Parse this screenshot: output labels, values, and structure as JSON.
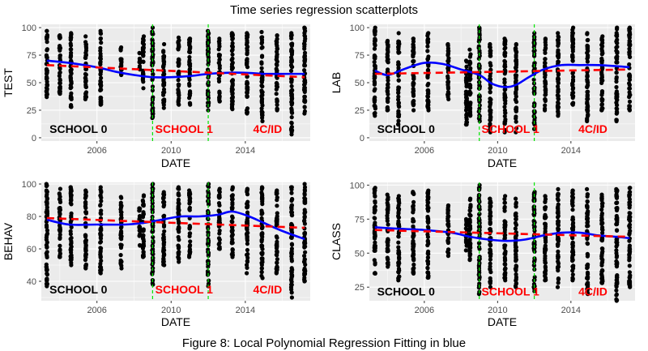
{
  "figure": {
    "title": "Time series regression scatterplots",
    "caption": "Figure 8: Local Polynomial Regression Fitting in blue"
  },
  "colors": {
    "panel_bg": "#ebebeb",
    "grid": "#ffffff",
    "points": "#000000",
    "loess": "#0000ff",
    "linear": "#ff0000",
    "vline": "#00e600",
    "school0": "#000000",
    "school1": "#ff0000",
    "fourcid": "#ff0000"
  },
  "chart_data": [
    {
      "type": "scatter",
      "ylabel": "TEST",
      "xlabel": "DATE",
      "xlim": [
        2003,
        2017.5
      ],
      "ylim": [
        -3,
        103
      ],
      "x_ticks": [
        2006,
        2010,
        2014
      ],
      "y_ticks": [
        0,
        25,
        50,
        75,
        100
      ],
      "vlines": [
        2009,
        2012
      ],
      "annotations": [
        {
          "text": "SCHOOL 0",
          "x": 2005,
          "y": 8
        },
        {
          "text": "SCHOOL 1",
          "x": 2010.7,
          "y": 8
        },
        {
          "text": "4C/ID",
          "x": 2015.2,
          "y": 8
        }
      ],
      "scatter_columns": [
        {
          "x": 2003.3,
          "min": 37,
          "max": 97
        },
        {
          "x": 2004.0,
          "min": 40,
          "max": 93
        },
        {
          "x": 2004.6,
          "min": 28,
          "max": 95
        },
        {
          "x": 2005.4,
          "min": 35,
          "max": 92
        },
        {
          "x": 2006.2,
          "min": 30,
          "max": 97
        },
        {
          "x": 2007.3,
          "min": 57,
          "max": 82
        },
        {
          "x": 2008.3,
          "min": 62,
          "max": 77
        },
        {
          "x": 2008.5,
          "min": 45,
          "max": 92
        },
        {
          "x": 2009.0,
          "min": 18,
          "max": 100
        },
        {
          "x": 2009.6,
          "min": 27,
          "max": 85
        },
        {
          "x": 2010.4,
          "min": 30,
          "max": 91
        },
        {
          "x": 2011.0,
          "min": 30,
          "max": 90
        },
        {
          "x": 2012.0,
          "min": 25,
          "max": 97
        },
        {
          "x": 2012.6,
          "min": 33,
          "max": 90
        },
        {
          "x": 2013.3,
          "min": 26,
          "max": 95
        },
        {
          "x": 2014.1,
          "min": 22,
          "max": 95
        },
        {
          "x": 2014.9,
          "min": 15,
          "max": 96
        },
        {
          "x": 2015.7,
          "min": 25,
          "max": 93
        },
        {
          "x": 2016.5,
          "min": 3,
          "max": 95
        },
        {
          "x": 2017.2,
          "min": 22,
          "max": 100
        }
      ],
      "series": [
        {
          "kind": "loess",
          "x": [
            2003.3,
            2004.5,
            2006.0,
            2007.0,
            2008.0,
            2009.0,
            2010.0,
            2011.0,
            2012.0,
            2013.0,
            2014.0,
            2015.0,
            2016.0,
            2017.2
          ],
          "y": [
            70,
            68,
            64,
            60,
            57,
            55,
            55,
            56,
            58,
            59,
            59,
            58,
            58,
            58
          ]
        },
        {
          "kind": "linear",
          "x": [
            2003.3,
            2017.2
          ],
          "y": [
            66,
            55
          ]
        }
      ]
    },
    {
      "type": "scatter",
      "ylabel": "LAB",
      "xlabel": "DATE",
      "xlim": [
        2003,
        2017.5
      ],
      "ylim": [
        -3,
        103
      ],
      "x_ticks": [
        2006,
        2010,
        2014
      ],
      "y_ticks": [
        0,
        25,
        50,
        75,
        100
      ],
      "vlines": [
        2009,
        2012
      ],
      "annotations": [
        {
          "text": "SCHOOL 0",
          "x": 2005,
          "y": 8
        },
        {
          "text": "SCHOOL 1",
          "x": 2010.7,
          "y": 8
        },
        {
          "text": "4C/ID",
          "x": 2015.2,
          "y": 8
        }
      ],
      "scatter_columns": [
        {
          "x": 2003.3,
          "min": 20,
          "max": 100
        },
        {
          "x": 2004.0,
          "min": 25,
          "max": 88
        },
        {
          "x": 2004.6,
          "min": 12,
          "max": 95
        },
        {
          "x": 2005.4,
          "min": 25,
          "max": 90
        },
        {
          "x": 2006.2,
          "min": 25,
          "max": 95
        },
        {
          "x": 2007.3,
          "min": 35,
          "max": 85
        },
        {
          "x": 2008.3,
          "min": 12,
          "max": 70
        },
        {
          "x": 2008.5,
          "min": 20,
          "max": 80
        },
        {
          "x": 2009.0,
          "min": 15,
          "max": 100
        },
        {
          "x": 2009.6,
          "min": 5,
          "max": 85
        },
        {
          "x": 2010.4,
          "min": 5,
          "max": 90
        },
        {
          "x": 2011.0,
          "min": 5,
          "max": 85
        },
        {
          "x": 2012.0,
          "min": 8,
          "max": 95
        },
        {
          "x": 2012.6,
          "min": 25,
          "max": 90
        },
        {
          "x": 2013.3,
          "min": 20,
          "max": 95
        },
        {
          "x": 2014.1,
          "min": 30,
          "max": 100
        },
        {
          "x": 2014.9,
          "min": 15,
          "max": 95
        },
        {
          "x": 2015.7,
          "min": 25,
          "max": 92
        },
        {
          "x": 2016.5,
          "min": 15,
          "max": 100
        },
        {
          "x": 2017.2,
          "min": 25,
          "max": 100
        }
      ],
      "series": [
        {
          "kind": "loess",
          "x": [
            2003.3,
            2004.0,
            2005.0,
            2006.0,
            2007.0,
            2008.0,
            2009.0,
            2009.7,
            2010.4,
            2011.0,
            2011.7,
            2012.5,
            2013.5,
            2014.5,
            2015.5,
            2016.5,
            2017.2
          ],
          "y": [
            61,
            57,
            63,
            68,
            67,
            62,
            57,
            49,
            46,
            48,
            55,
            62,
            66,
            66,
            66,
            65,
            64
          ]
        },
        {
          "kind": "linear",
          "x": [
            2003.3,
            2017.2
          ],
          "y": [
            58,
            62
          ]
        }
      ]
    },
    {
      "type": "scatter",
      "ylabel": "BEHAV",
      "xlabel": "DATE",
      "xlim": [
        2003,
        2017.5
      ],
      "ylim": [
        28,
        101
      ],
      "x_ticks": [
        2006,
        2010,
        2014
      ],
      "y_ticks": [
        40,
        60,
        80,
        100
      ],
      "vlines": [
        2009,
        2012
      ],
      "annotations": [
        {
          "text": "SCHOOL 0",
          "x": 2005,
          "y": 35
        },
        {
          "text": "SCHOOL 1",
          "x": 2010.7,
          "y": 35
        },
        {
          "text": "4C/ID",
          "x": 2015.2,
          "y": 35
        }
      ],
      "scatter_columns": [
        {
          "x": 2003.3,
          "min": 37,
          "max": 100
        },
        {
          "x": 2004.0,
          "min": 55,
          "max": 97
        },
        {
          "x": 2004.6,
          "min": 50,
          "max": 98
        },
        {
          "x": 2005.4,
          "min": 48,
          "max": 96
        },
        {
          "x": 2006.2,
          "min": 45,
          "max": 98
        },
        {
          "x": 2007.3,
          "min": 48,
          "max": 92
        },
        {
          "x": 2008.3,
          "min": 62,
          "max": 85
        },
        {
          "x": 2008.5,
          "min": 55,
          "max": 93
        },
        {
          "x": 2009.0,
          "min": 38,
          "max": 100
        },
        {
          "x": 2009.6,
          "min": 50,
          "max": 95
        },
        {
          "x": 2010.4,
          "min": 52,
          "max": 98
        },
        {
          "x": 2011.0,
          "min": 55,
          "max": 96
        },
        {
          "x": 2012.0,
          "min": 37,
          "max": 100
        },
        {
          "x": 2012.6,
          "min": 60,
          "max": 97
        },
        {
          "x": 2013.3,
          "min": 55,
          "max": 98
        },
        {
          "x": 2014.1,
          "min": 45,
          "max": 97
        },
        {
          "x": 2014.9,
          "min": 42,
          "max": 98
        },
        {
          "x": 2015.7,
          "min": 45,
          "max": 96
        },
        {
          "x": 2016.5,
          "min": 30,
          "max": 98
        },
        {
          "x": 2017.2,
          "min": 40,
          "max": 100
        }
      ],
      "series": [
        {
          "kind": "loess",
          "x": [
            2003.3,
            2004.5,
            2006.0,
            2007.5,
            2008.5,
            2009.5,
            2010.5,
            2011.5,
            2012.5,
            2013.3,
            2014.2,
            2015.0,
            2016.0,
            2017.2
          ],
          "y": [
            78,
            75,
            75,
            75,
            76,
            78,
            80,
            80,
            81,
            83,
            80,
            76,
            71,
            66
          ]
        },
        {
          "kind": "linear",
          "x": [
            2003.3,
            2017.2
          ],
          "y": [
            79,
            73
          ]
        }
      ]
    },
    {
      "type": "scatter",
      "ylabel": "CLASS",
      "xlabel": "DATE",
      "xlim": [
        2003,
        2017.5
      ],
      "ylim": [
        15,
        102
      ],
      "x_ticks": [
        2006,
        2010,
        2014
      ],
      "y_ticks": [
        25,
        50,
        75,
        100
      ],
      "vlines": [
        2009,
        2012
      ],
      "annotations": [
        {
          "text": "SCHOOL 0",
          "x": 2005,
          "y": 22
        },
        {
          "text": "SCHOOL 1",
          "x": 2010.7,
          "y": 22
        },
        {
          "text": "4C/ID",
          "x": 2015.2,
          "y": 22
        }
      ],
      "scatter_columns": [
        {
          "x": 2003.3,
          "min": 35,
          "max": 98
        },
        {
          "x": 2004.0,
          "min": 40,
          "max": 93
        },
        {
          "x": 2004.6,
          "min": 30,
          "max": 92
        },
        {
          "x": 2005.4,
          "min": 35,
          "max": 95
        },
        {
          "x": 2006.2,
          "min": 32,
          "max": 96
        },
        {
          "x": 2007.3,
          "min": 48,
          "max": 85
        },
        {
          "x": 2008.3,
          "min": 52,
          "max": 75
        },
        {
          "x": 2008.5,
          "min": 45,
          "max": 90
        },
        {
          "x": 2009.0,
          "min": 20,
          "max": 100
        },
        {
          "x": 2009.6,
          "min": 25,
          "max": 90
        },
        {
          "x": 2010.4,
          "min": 30,
          "max": 92
        },
        {
          "x": 2011.0,
          "min": 25,
          "max": 90
        },
        {
          "x": 2012.0,
          "min": 22,
          "max": 95
        },
        {
          "x": 2012.6,
          "min": 30,
          "max": 92
        },
        {
          "x": 2013.3,
          "min": 25,
          "max": 97
        },
        {
          "x": 2014.1,
          "min": 30,
          "max": 96
        },
        {
          "x": 2014.9,
          "min": 20,
          "max": 97
        },
        {
          "x": 2015.7,
          "min": 28,
          "max": 93
        },
        {
          "x": 2016.5,
          "min": 15,
          "max": 97
        },
        {
          "x": 2017.2,
          "min": 25,
          "max": 98
        }
      ],
      "series": [
        {
          "kind": "loess",
          "x": [
            2003.3,
            2004.5,
            2006.0,
            2007.5,
            2008.5,
            2009.5,
            2010.5,
            2011.5,
            2012.5,
            2013.5,
            2014.5,
            2015.5,
            2016.5,
            2017.2
          ],
          "y": [
            69,
            68,
            67,
            65,
            62,
            60,
            59,
            60,
            63,
            65,
            65,
            63,
            62,
            61
          ]
        },
        {
          "kind": "linear",
          "x": [
            2003.3,
            2017.2
          ],
          "y": [
            67,
            62
          ]
        }
      ]
    }
  ]
}
